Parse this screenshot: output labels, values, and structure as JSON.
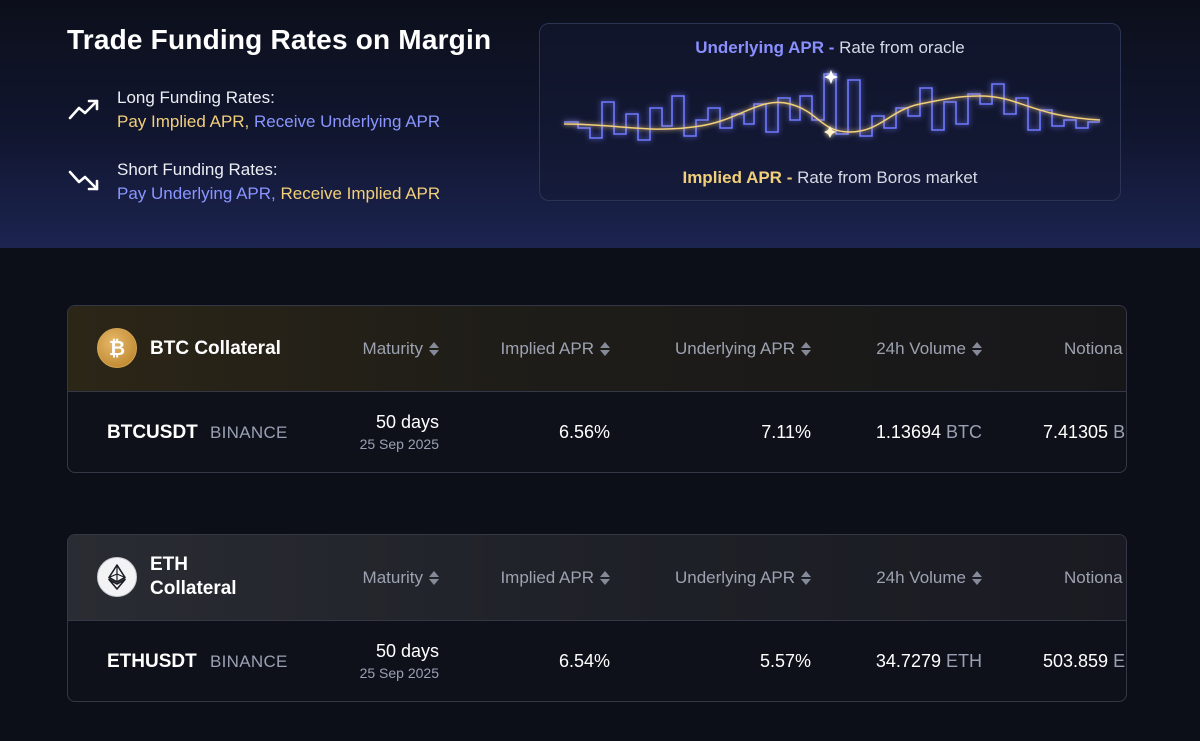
{
  "hero": {
    "title": "Trade Funding Rates on Margin",
    "long": {
      "icon": "trend-up-icon",
      "heading": "Long Funding Rates:",
      "pay": "Pay Implied APR,",
      "receive": "Receive Underlying APR"
    },
    "short": {
      "icon": "trend-down-icon",
      "heading": "Short Funding Rates:",
      "pay": "Pay Underlying APR,",
      "receive": "Receive Implied APR"
    }
  },
  "illustration": {
    "top_strong": "Underlying APR",
    "top_sep": " - ",
    "top_rest": "Rate from oracle",
    "bottom_strong": "Implied APR",
    "bottom_sep": " - ",
    "bottom_rest": "Rate from Boros market",
    "colors": {
      "underlying": "#6f78ff",
      "implied": "#f2cf7a"
    }
  },
  "columns": {
    "maturity": "Maturity",
    "implied": "Implied APR",
    "underlying": "Underlying APR",
    "volume": "24h Volume",
    "notional": "Notiona"
  },
  "markets": [
    {
      "collateral_label": "BTC Collateral",
      "coin_icon": "bitcoin-icon",
      "symbol": "BTCUSDT",
      "exchange": "BINANCE",
      "maturity_days": "50 days",
      "maturity_date": "25 Sep 2025",
      "implied_apr": "6.56%",
      "underlying_apr": "7.11%",
      "volume_value": "1.13694",
      "volume_unit": "BTC",
      "notional_value": "7.41305",
      "notional_unit": "B"
    },
    {
      "collateral_label": "ETH Collateral",
      "coin_icon": "ethereum-icon",
      "symbol": "ETHUSDT",
      "exchange": "BINANCE",
      "maturity_days": "50 days",
      "maturity_date": "25 Sep 2025",
      "implied_apr": "6.54%",
      "underlying_apr": "5.57%",
      "volume_value": "34.7279",
      "volume_unit": "ETH",
      "notional_value": "503.859",
      "notional_unit": "E"
    }
  ]
}
